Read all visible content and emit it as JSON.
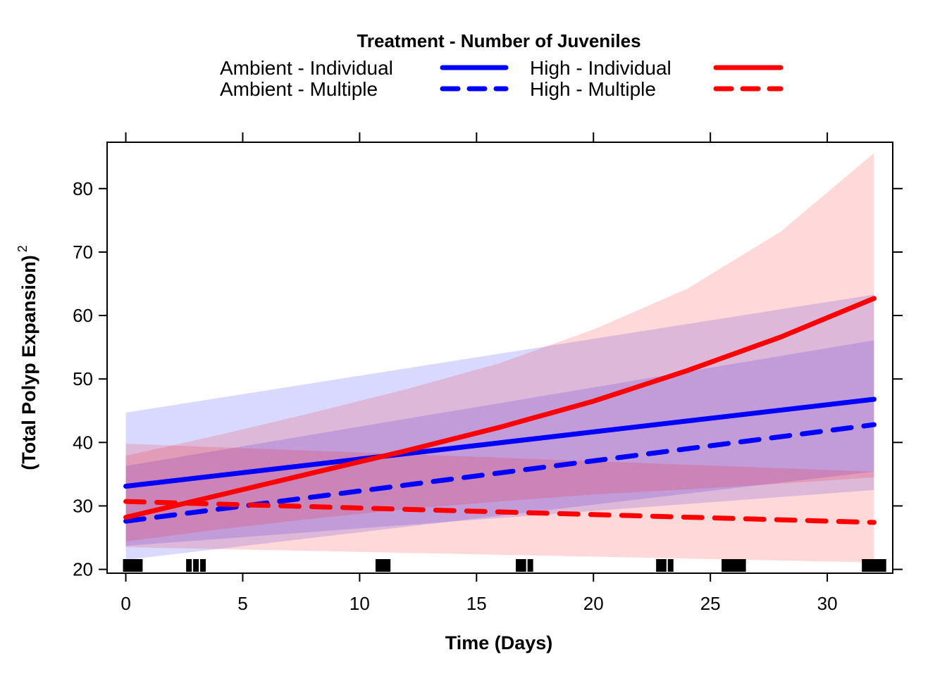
{
  "chart_data": {
    "type": "line",
    "title": "",
    "legend_title": "Treatment - Number of Juveniles",
    "legend_placement": "top",
    "xlabel": "Time (Days)",
    "ylabel_main": "(Total Polyp Expansion)",
    "ylabel_superscript": "2",
    "xlim": [
      -0.8,
      32.8
    ],
    "ylim": [
      19.4,
      87.3
    ],
    "x_ticks": [
      0,
      5,
      10,
      15,
      20,
      25,
      30
    ],
    "y_ticks": [
      20,
      30,
      40,
      50,
      60,
      70,
      80
    ],
    "grid": false,
    "colors": {
      "ambient": "#0000ff",
      "high": "#ff0000",
      "ambient_band": "#0000ff",
      "high_band": "#ff0000",
      "rug": "#000000"
    },
    "series": [
      {
        "name": "Ambient - Individual",
        "group": "ambient",
        "line_style": "solid",
        "x": [
          0,
          32
        ],
        "y": [
          33.1,
          46.8
        ],
        "lower": [
          21.5,
          35.4
        ],
        "upper": [
          44.7,
          63.3
        ]
      },
      {
        "name": "Ambient - Multiple",
        "group": "ambient",
        "line_style": "dashed",
        "x": [
          0,
          32
        ],
        "y": [
          27.6,
          42.8
        ],
        "lower": [
          23.7,
          32.5
        ],
        "upper": [
          36.3,
          56.1
        ]
      },
      {
        "name": "High - Individual",
        "group": "high",
        "line_style": "solid",
        "x": [
          0,
          4,
          8,
          12,
          16,
          20,
          24,
          28,
          32
        ],
        "y": [
          28.2,
          31.7,
          35.2,
          38.7,
          42.4,
          46.5,
          51.3,
          56.6,
          62.7
        ],
        "lower": [
          24.4,
          26.3,
          28.0,
          29.5,
          30.7,
          31.8,
          32.6,
          33.5,
          34.5
        ],
        "upper": [
          37.9,
          41.2,
          44.7,
          48.4,
          52.5,
          57.8,
          64.2,
          73.2,
          85.6
        ]
      },
      {
        "name": "High - Multiple",
        "group": "high",
        "line_style": "dashed",
        "x": [
          0,
          32
        ],
        "y": [
          30.7,
          27.4
        ],
        "lower": [
          23.5,
          21.1
        ],
        "upper": [
          39.8,
          35.4
        ]
      }
    ],
    "rug_x": [
      0,
      0.2,
      0.4,
      0.6,
      2.7,
      3.0,
      3.3,
      10.8,
      11.0,
      11.2,
      16.8,
      17.0,
      17.3,
      22.8,
      23.0,
      23.3,
      25.6,
      25.8,
      26.0,
      26.2,
      26.4,
      31.6,
      31.8,
      32.0,
      32.2,
      32.4
    ]
  }
}
